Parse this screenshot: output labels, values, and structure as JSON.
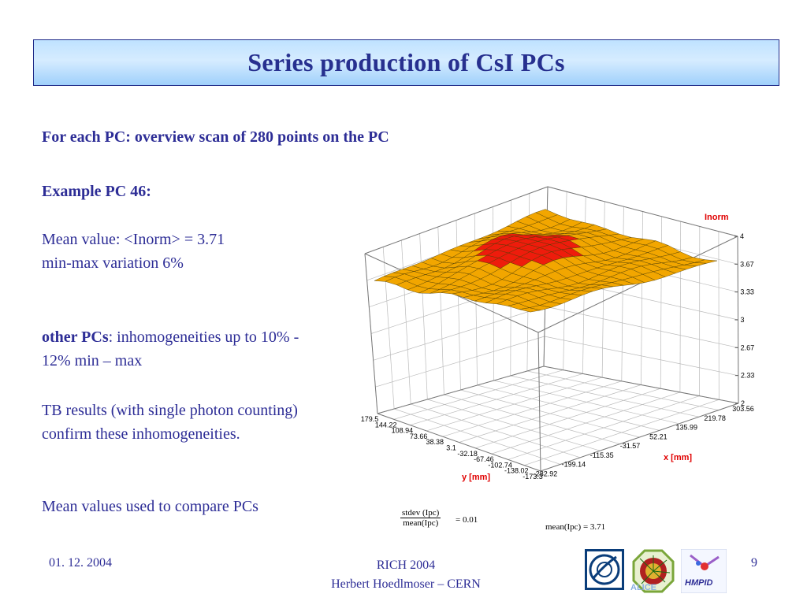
{
  "title": "Series production of CsI PCs",
  "body": {
    "heading": "For each PC: overview scan of 280 points on the PC",
    "example": "Example PC 46:",
    "mean_line": "Mean value:  <Inorm> = 3.71",
    "minmax_line": "min-max variation 6%",
    "other_pcs_label": "other PCs",
    "other_pcs_text": ": inhomogeneities up to 10% - 12% min – max",
    "tb_text": "TB results (with single photon counting) confirm these inhomogeneities.",
    "mean_used": "Mean values used to compare PCs"
  },
  "chart_data": {
    "type": "surface",
    "zlabel": "Inorm",
    "xlabel": "x [mm]",
    "ylabel": "y [mm]",
    "z_ticks": [
      "4",
      "3.67",
      "3.33",
      "3",
      "2.67",
      "2.33",
      "2"
    ],
    "x_ticks": [
      "303.56",
      "219.78",
      "135.99",
      "52.21",
      "-31.57",
      "-115.35",
      "-199.14",
      "-282.92"
    ],
    "y_ticks": [
      "179.5",
      "144.22",
      "108.94",
      "73.66",
      "38.38",
      "3.1",
      "-32.18",
      "-67.46",
      "-102.74",
      "-138.02",
      "-173.3"
    ],
    "zlim": [
      2,
      4
    ],
    "surface_colors": {
      "low": "#f2a600",
      "high": "#ee1c0c",
      "mesh": "#4a3a00"
    }
  },
  "formulas": {
    "ratio_num": "stdev (Ipc)",
    "ratio_den": "mean(Ipc)",
    "ratio_val": "= 0.01",
    "mean_formula": "mean(Ipc) = 3.71"
  },
  "footer": {
    "date": "01. 12. 2004",
    "line1": "RICH 2004",
    "line2": "Herbert Hoedlmoser – CERN",
    "page": "9"
  },
  "logos": {
    "cern": "CERN",
    "alice": "ALICE",
    "hmpid": "HMPID"
  },
  "colors": {
    "accent": "#2d2d96",
    "title": "#27308f"
  }
}
